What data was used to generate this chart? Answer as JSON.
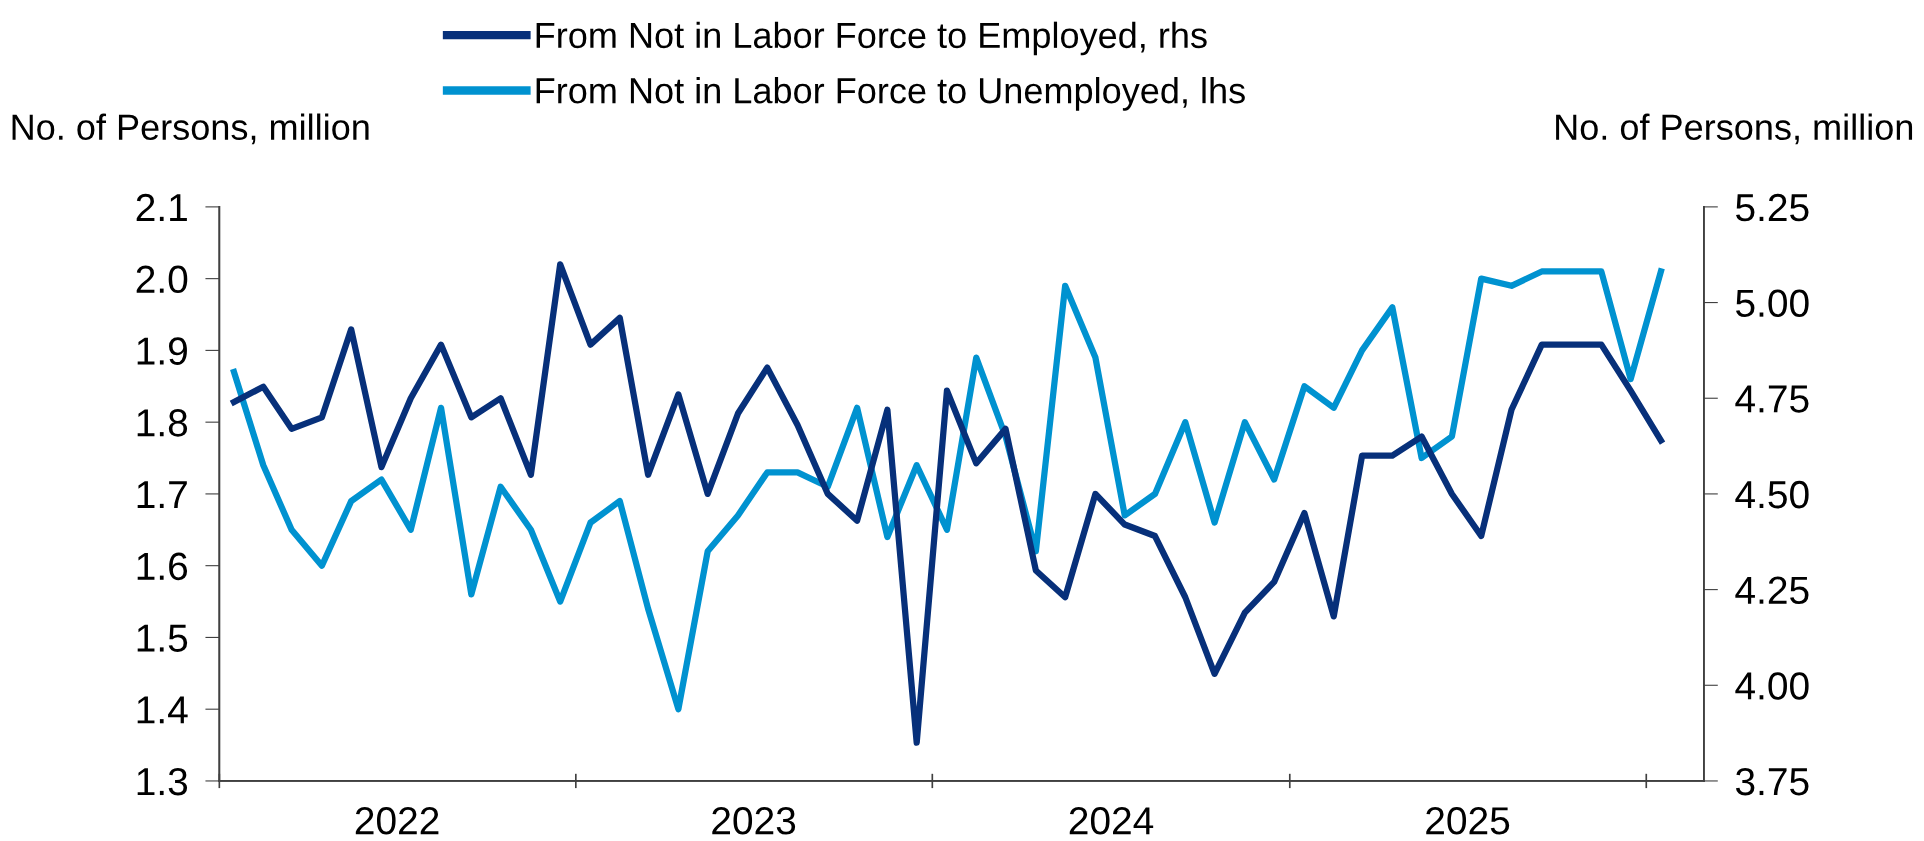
{
  "chart_data": {
    "type": "line",
    "ylabel": "No. of Persons, million",
    "y2label": "No. of Persons, million",
    "x": [
      "2022-01-16",
      "2022-02-15",
      "2022-03-16",
      "2022-04-16",
      "2022-05-16",
      "2022-06-16",
      "2022-07-16",
      "2022-08-16",
      "2022-09-16",
      "2022-10-16",
      "2022-11-16",
      "2022-12-16",
      "2023-01-16",
      "2023-02-15",
      "2023-03-16",
      "2023-04-16",
      "2023-05-16",
      "2023-06-16",
      "2023-07-16",
      "2023-08-16",
      "2023-09-16",
      "2023-10-16",
      "2023-11-16",
      "2023-12-16",
      "2024-01-16",
      "2024-02-15",
      "2024-03-16",
      "2024-04-16",
      "2024-05-16",
      "2024-06-16",
      "2024-07-16",
      "2024-08-16",
      "2024-09-16",
      "2024-10-16",
      "2024-11-16",
      "2024-12-16",
      "2025-01-16",
      "2025-02-15",
      "2025-03-16",
      "2025-04-16",
      "2025-05-16",
      "2025-06-16",
      "2025-07-16",
      "2025-08-16",
      "2025-09-16",
      "2025-10-16",
      "2025-11-16",
      "2025-12-16",
      "2026-01-16"
    ],
    "series": [
      {
        "name": "From Not in Labor Force to Employed, rhs",
        "color": "#07307a",
        "axis": "y2",
        "values": [
          4.74,
          4.78,
          4.67,
          4.7,
          4.93,
          4.57,
          4.75,
          4.89,
          4.7,
          4.75,
          4.55,
          5.1,
          4.89,
          4.96,
          4.55,
          4.76,
          4.5,
          4.71,
          4.83,
          4.68,
          4.5,
          4.43,
          4.72,
          3.85,
          4.77,
          4.58,
          4.67,
          4.3,
          4.23,
          4.5,
          4.42,
          4.39,
          4.23,
          4.03,
          4.19,
          4.27,
          4.45,
          4.18,
          4.6,
          4.6,
          4.65,
          4.5,
          4.39,
          4.72,
          4.89,
          4.89,
          4.89,
          4.77,
          4.64
        ]
      },
      {
        "name": "From Not in Labor Force to Unemployed, lhs",
        "color": "#0092d0",
        "values": [
          1.87,
          1.74,
          1.65,
          1.6,
          1.69,
          1.72,
          1.65,
          1.82,
          1.56,
          1.71,
          1.65,
          1.55,
          1.66,
          1.69,
          1.54,
          1.4,
          1.62,
          1.67,
          1.73,
          1.73,
          1.71,
          1.82,
          1.64,
          1.74,
          1.65,
          1.89,
          1.78,
          1.62,
          1.99,
          1.89,
          1.67,
          1.7,
          1.8,
          1.66,
          1.8,
          1.72,
          1.85,
          1.82,
          1.9,
          1.96,
          1.75,
          1.78,
          2.0,
          1.99,
          2.01,
          2.01,
          2.01,
          1.86,
          2.01
        ]
      }
    ],
    "xlim": [
      "2022-01-01",
      "2026-03-01"
    ],
    "xticks": [
      {
        "value": "2022-07-02",
        "label": "2022"
      },
      {
        "value": "2023-07-02",
        "label": "2023"
      },
      {
        "value": "2024-07-02",
        "label": "2024"
      },
      {
        "value": "2025-07-02",
        "label": "2025"
      }
    ],
    "ylim": [
      1.3,
      2.1
    ],
    "yticks": [
      {
        "value": 1.3,
        "label": "1.3"
      },
      {
        "value": 1.4,
        "label": "1.4"
      },
      {
        "value": 1.5,
        "label": "1.5"
      },
      {
        "value": 1.6,
        "label": "1.6"
      },
      {
        "value": 1.7,
        "label": "1.7"
      },
      {
        "value": 1.8,
        "label": "1.8"
      },
      {
        "value": 1.9,
        "label": "1.9"
      },
      {
        "value": 2.0,
        "label": "2.0"
      },
      {
        "value": 2.1,
        "label": "2.1"
      }
    ],
    "y2lim": [
      3.75,
      5.25
    ],
    "y2ticks": [
      {
        "value": 3.75,
        "label": "3.75"
      },
      {
        "value": 4.0,
        "label": "4.00"
      },
      {
        "value": 4.25,
        "label": "4.25"
      },
      {
        "value": 4.5,
        "label": "4.50"
      },
      {
        "value": 4.75,
        "label": "4.75"
      },
      {
        "value": 5.0,
        "label": "5.00"
      },
      {
        "value": 5.25,
        "label": "5.25"
      }
    ],
    "grid": false,
    "legend": "top",
    "marker": "none",
    "line_style": "solid"
  }
}
